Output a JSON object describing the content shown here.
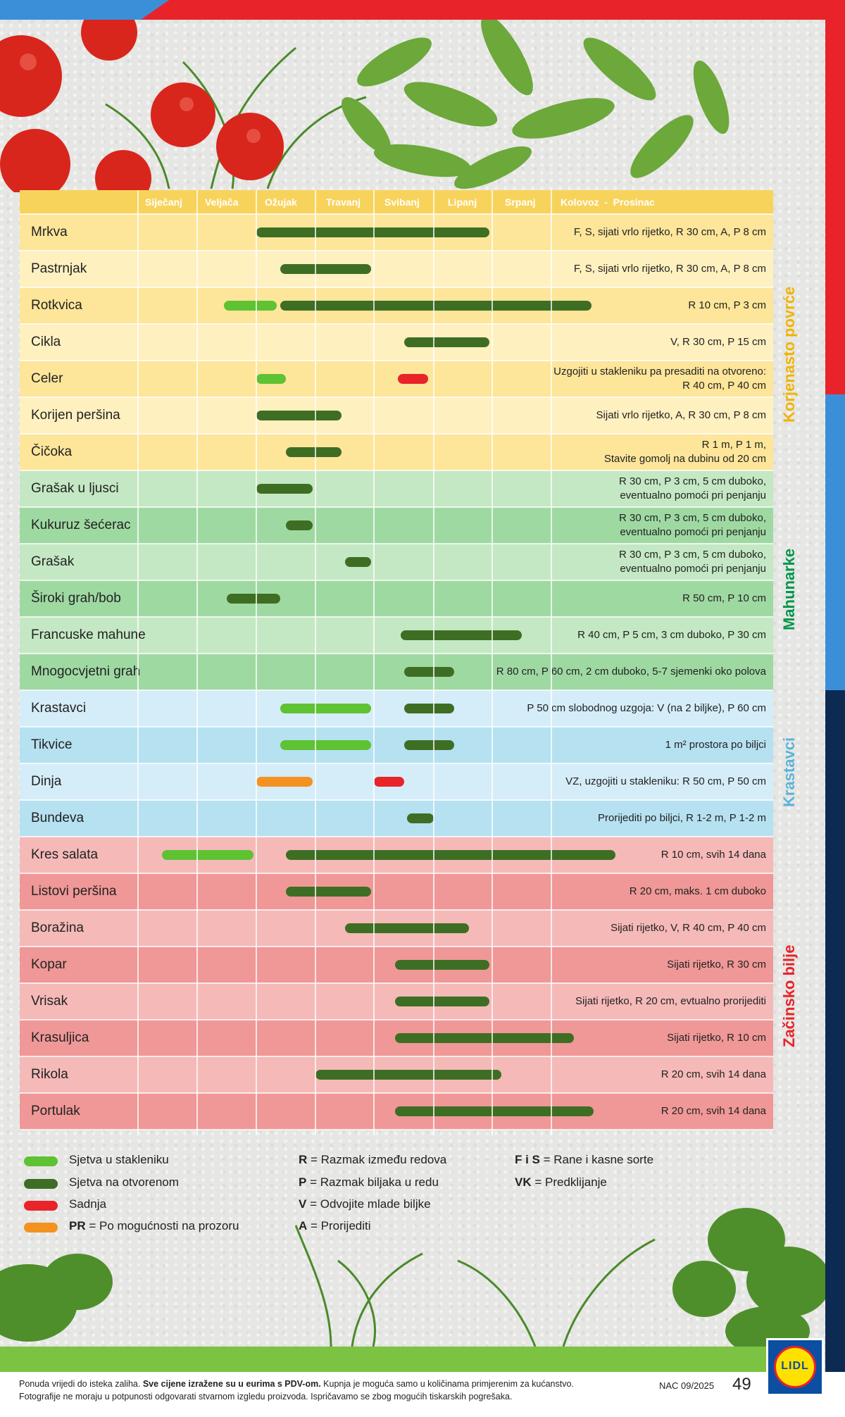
{
  "months": [
    "Siječanj",
    "Veljača",
    "Ožujak",
    "Travanj",
    "Svibanj",
    "Lipanj",
    "Srpanj"
  ],
  "last_month_header": "Kolovoz  -  Prosinac",
  "colors": {
    "greenhouse": "#5ec232",
    "outdoor": "#3e6e23",
    "planting": "#e8232a",
    "windowsill": "#f39221",
    "root_dark": "#fde59a",
    "root_light": "#fff0c0",
    "legume_dark": "#9fd9a2",
    "legume_light": "#c4e8c3",
    "cucumber_dark": "#b6e1f1",
    "cucumber_light": "#d5edf8",
    "herb_dark": "#ef9897",
    "herb_light": "#f5b9b8"
  },
  "groups": [
    {
      "label": "Korjenasto povrće",
      "color": "#f0b400"
    },
    {
      "label": "Mahunarke",
      "color": "#00964a"
    },
    {
      "label": "Krastavci",
      "color": "#5ab4d8"
    },
    {
      "label": "Začinsko bilje",
      "color": "#e8232a"
    }
  ],
  "rows": [
    {
      "name": "Mrkva",
      "note": "F, S, sijati vrlo rijetko, R 30 cm,  A, P 8 cm",
      "group": 0,
      "bars": [
        {
          "t": "outdoor",
          "s": 2.0,
          "e": 5.95
        }
      ]
    },
    {
      "name": "Pastrnjak",
      "note": "F, S, sijati vrlo rijetko, R 30 cm,  A, P 8 cm",
      "group": 0,
      "bars": [
        {
          "t": "outdoor",
          "s": 2.4,
          "e": 3.95
        }
      ]
    },
    {
      "name": "Rotkvica",
      "note": "R 10 cm, P 3 cm",
      "group": 0,
      "bars": [
        {
          "t": "greenhouse",
          "s": 1.45,
          "e": 2.35
        },
        {
          "t": "outdoor",
          "s": 2.4,
          "e": 7.9
        }
      ]
    },
    {
      "name": "Cikla",
      "note": "V, R 30 cm, P 15 cm",
      "group": 0,
      "bars": [
        {
          "t": "outdoor",
          "s": 4.5,
          "e": 5.95
        }
      ]
    },
    {
      "name": "Celer",
      "note": "Uzgojiti u stakleniku pa presaditi na otvoreno:\nR 40 cm, P 40 cm",
      "group": 0,
      "bars": [
        {
          "t": "greenhouse",
          "s": 2.0,
          "e": 2.5
        },
        {
          "t": "planting",
          "s": 4.4,
          "e": 4.9
        }
      ]
    },
    {
      "name": "Korijen peršina",
      "note": "Sijati vrlo rijetko, A, R 30 cm, P 8 cm",
      "group": 0,
      "bars": [
        {
          "t": "outdoor",
          "s": 2.0,
          "e": 3.45
        }
      ]
    },
    {
      "name": "Čičoka",
      "note": "R 1 m, P 1 m,\nStavite gomolj na dubinu od 20 cm",
      "group": 0,
      "bars": [
        {
          "t": "outdoor",
          "s": 2.5,
          "e": 3.45
        }
      ]
    },
    {
      "name": "Grašak u ljusci",
      "note": "R 30 cm, P 3 cm, 5 cm duboko,\neventualno pomoći pri penjanju",
      "group": 1,
      "bars": [
        {
          "t": "outdoor",
          "s": 2.0,
          "e": 2.95
        }
      ]
    },
    {
      "name": "Kukuruz šećerac",
      "note": "R 30 cm, P 3 cm, 5 cm duboko,\neventualno pomoći pri penjanju",
      "group": 1,
      "bars": [
        {
          "t": "outdoor",
          "s": 2.5,
          "e": 2.95
        }
      ]
    },
    {
      "name": "Grašak",
      "note": "R 30 cm, P 3 cm, 5 cm duboko,\neventualno pomoći pri penjanju",
      "group": 1,
      "bars": [
        {
          "t": "outdoor",
          "s": 3.5,
          "e": 3.95
        }
      ]
    },
    {
      "name": "Široki grah/bob",
      "note": "R 50 cm, P 10 cm",
      "group": 1,
      "bars": [
        {
          "t": "outdoor",
          "s": 1.5,
          "e": 2.4
        }
      ]
    },
    {
      "name": "Francuske mahune",
      "note": "R 40 cm, P 5 cm, 3 cm duboko, P 30 cm",
      "group": 1,
      "bars": [
        {
          "t": "outdoor",
          "s": 4.45,
          "e": 6.5
        }
      ]
    },
    {
      "name": "Mnogocvjetni grah",
      "note": "R 80 cm, P 60 cm, 2 cm duboko, 5-7 sjemenki oko polova",
      "group": 1,
      "bars": [
        {
          "t": "outdoor",
          "s": 4.5,
          "e": 5.35
        }
      ]
    },
    {
      "name": "Krastavci",
      "note": "P 50 cm slobodnog uzgoja: V (na 2 biljke), P 60 cm",
      "group": 2,
      "bars": [
        {
          "t": "greenhouse",
          "s": 2.4,
          "e": 3.95
        },
        {
          "t": "outdoor",
          "s": 4.5,
          "e": 5.35
        }
      ]
    },
    {
      "name": "Tikvice",
      "note": "1 m² prostora po biljci",
      "group": 2,
      "bars": [
        {
          "t": "greenhouse",
          "s": 2.4,
          "e": 3.95
        },
        {
          "t": "outdoor",
          "s": 4.5,
          "e": 5.35
        }
      ]
    },
    {
      "name": "Dinja",
      "note": "VZ, uzgojiti u stakleniku: R 50 cm, P 50 cm",
      "group": 2,
      "bars": [
        {
          "t": "windowsill",
          "s": 2.0,
          "e": 2.95
        },
        {
          "t": "planting",
          "s": 4.0,
          "e": 4.5
        }
      ]
    },
    {
      "name": "Bundeva",
      "note": "Prorijediti po biljci, R 1-2 m, P 1-2 m",
      "group": 2,
      "bars": [
        {
          "t": "outdoor",
          "s": 4.55,
          "e": 5.0
        }
      ]
    },
    {
      "name": "Kres salata",
      "note": "R 10 cm, svih 14 dana",
      "group": 3,
      "bars": [
        {
          "t": "greenhouse",
          "s": 0.4,
          "e": 1.95
        },
        {
          "t": "outdoor",
          "s": 2.5,
          "e": 8.45
        }
      ]
    },
    {
      "name": "Listovi peršina",
      "note": "R 20 cm, maks. 1 cm duboko",
      "group": 3,
      "bars": [
        {
          "t": "outdoor",
          "s": 2.5,
          "e": 3.95
        }
      ]
    },
    {
      "name": "Boražina",
      "note": "Sijati rijetko, V, R 40 cm, P 40 cm",
      "group": 3,
      "bars": [
        {
          "t": "outdoor",
          "s": 3.5,
          "e": 5.6
        }
      ]
    },
    {
      "name": "Kopar",
      "note": "Sijati rijetko, R 30 cm",
      "group": 3,
      "bars": [
        {
          "t": "outdoor",
          "s": 4.35,
          "e": 5.95
        }
      ]
    },
    {
      "name": "Vrisak",
      "note": "Sijati rijetko, R 20 cm, evtualno prorijediti",
      "group": 3,
      "bars": [
        {
          "t": "outdoor",
          "s": 4.35,
          "e": 5.95
        }
      ]
    },
    {
      "name": "Krasuljica",
      "note": "Sijati rijetko, R 10 cm",
      "group": 3,
      "bars": [
        {
          "t": "outdoor",
          "s": 4.35,
          "e": 7.5
        }
      ]
    },
    {
      "name": "Rikola",
      "note": "R 20 cm, svih 14 dana",
      "group": 3,
      "bars": [
        {
          "t": "outdoor",
          "s": 3.0,
          "e": 6.15
        }
      ]
    },
    {
      "name": "Portulak",
      "note": "R 20 cm, svih 14 dana",
      "group": 3,
      "bars": [
        {
          "t": "outdoor",
          "s": 4.35,
          "e": 7.95
        }
      ]
    }
  ],
  "legend_colors": [
    {
      "label": "Sjetva u stakleniku",
      "type": "greenhouse"
    },
    {
      "label": "Sjetva na otvorenom",
      "type": "outdoor"
    },
    {
      "label": "Sadnja",
      "type": "planting"
    },
    {
      "label": "PR",
      "label_rest": " = Po mogućnosti na prozoru",
      "type": "windowsill"
    }
  ],
  "legend_abbr_1": [
    {
      "k": "R",
      "v": " = Razmak između redova"
    },
    {
      "k": "P",
      "v": " = Razmak biljaka u redu"
    },
    {
      "k": "V",
      "v": " = Odvojite mlade biljke"
    },
    {
      "k": "A",
      "v": " = Prorijediti"
    }
  ],
  "legend_abbr_2": [
    {
      "k": "F i S",
      "v": " = Rane i kasne sorte"
    },
    {
      "k": "VK",
      "v": " = Predklijanje"
    }
  ],
  "footer": {
    "line1_a": "Ponuda vrijedi do isteka zaliha. ",
    "line1_b": "Sve cijene izražene su u eurima s PDV-om.",
    "line1_c": " Kupnja je moguća samo u količinama primjerenim za kućanstvo.",
    "line2": "Fotografije ne moraju u potpunosti odgovarati stvarnom izgledu proizvoda. Ispričavamo se zbog mogućih tiskarskih pogrešaka.",
    "code": "NAC 09/2025",
    "page": "49",
    "logo": "LIDL"
  }
}
